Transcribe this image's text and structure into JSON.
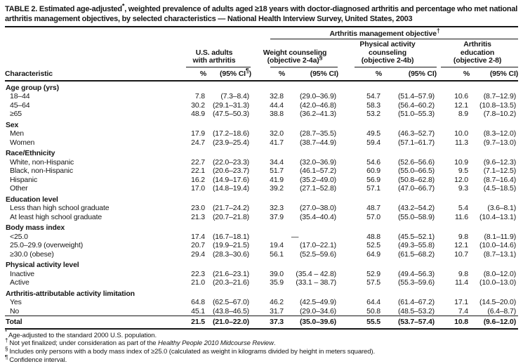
{
  "title": {
    "pre": "TABLE 2. Estimated age-adjusted",
    "sup": "*",
    "post": ", weighted prevalence of adults aged ≥18 years with doctor-diagnosed arthritis and percentage who met national arthritis management objectives, by selected characteristics — National Health Interview Survey, United States, 2003"
  },
  "table": {
    "characteristic_label": "Characteristic",
    "pct_label": "%",
    "ci_label": "(95% CI)",
    "ci_label_first": {
      "pre": "(95% CI",
      "sup": "¶",
      "post": ")"
    },
    "spanner": {
      "label": "Arthritis management objective",
      "sup": "†"
    },
    "groups": [
      {
        "lines": [
          "U.S. adults",
          "with arthritis"
        ],
        "sup": ""
      },
      {
        "lines": [
          "Weight counseling",
          "(objective 2-4a)"
        ],
        "sup": "§"
      },
      {
        "lines": [
          "Physical activity",
          "counseling",
          "(objective 2-4b)"
        ],
        "sup": ""
      },
      {
        "lines": [
          "Arthritis",
          "education",
          "(objective 2-8)"
        ],
        "sup": ""
      }
    ],
    "rows": [
      {
        "type": "category",
        "indent": 0,
        "label": "Age group (yrs)"
      },
      {
        "type": "data",
        "indent": 1,
        "label": "18–44",
        "cells": [
          "7.8",
          "(7.3–8.4)",
          "32.8",
          "(29.0–36.9)",
          "54.7",
          "(51.4–57.9)",
          "10.6",
          "(8.7–12.9)"
        ]
      },
      {
        "type": "data",
        "indent": 1,
        "label": "45–64",
        "cells": [
          "30.2",
          "(29.1–31.3)",
          "44.4",
          "(42.0–46.8)",
          "58.3",
          "(56.4–60.2)",
          "12.1",
          "(10.8–13.5)"
        ]
      },
      {
        "type": "data",
        "indent": 1,
        "label": "≥65",
        "cells": [
          "48.9",
          "(47.5–50.3)",
          "38.8",
          "(36.2–41.3)",
          "53.2",
          "(51.0–55.3)",
          "8.9",
          "(7.8–10.2)"
        ]
      },
      {
        "type": "category",
        "indent": 0,
        "label": "Sex"
      },
      {
        "type": "data",
        "indent": 1,
        "label": "Men",
        "cells": [
          "17.9",
          "(17.2–18.6)",
          "32.0",
          "(28.7–35.5)",
          "49.5",
          "(46.3–52.7)",
          "10.0",
          "(8.3–12.0)"
        ]
      },
      {
        "type": "data",
        "indent": 1,
        "label": "Women",
        "cells": [
          "24.7",
          "(23.9–25.4)",
          "41.7",
          "(38.7–44.9)",
          "59.4",
          "(57.1–61.7)",
          "11.3",
          "(9.7–13.0)"
        ]
      },
      {
        "type": "category",
        "indent": 0,
        "label": "Race/Ethnicity"
      },
      {
        "type": "data",
        "indent": 1,
        "label": "White, non-Hispanic",
        "cells": [
          "22.7",
          "(22.0–23.3)",
          "34.4",
          "(32.0–36.9)",
          "54.6",
          "(52.6–56.6)",
          "10.9",
          "(9.6–12.3)"
        ]
      },
      {
        "type": "data",
        "indent": 1,
        "label": "Black, non-Hispanic",
        "cells": [
          "22.1",
          "(20.6–23.7)",
          "51.7",
          "(46.1–57.2)",
          "60.9",
          "(55.0–66.5)",
          "9.5",
          "(7.1–12.5)"
        ]
      },
      {
        "type": "data",
        "indent": 1,
        "label": "Hispanic",
        "cells": [
          "16.2",
          "(14.9–17.6)",
          "41.9",
          "(35.2–49.0)",
          "56.9",
          "(50.8–62.8)",
          "12.0",
          "(8.7–16.4)"
        ]
      },
      {
        "type": "data",
        "indent": 1,
        "label": "Other",
        "cells": [
          "17.0",
          "(14.8–19.4)",
          "39.2",
          "(27.1–52.8)",
          "57.1",
          "(47.0–66.7)",
          "9.3",
          "(4.5–18.5)"
        ]
      },
      {
        "type": "category",
        "indent": 0,
        "label": "Education level"
      },
      {
        "type": "data",
        "indent": 1,
        "label": "Less than high school graduate",
        "cells": [
          "23.0",
          "(21.7–24.2)",
          "32.3",
          "(27.0–38.0)",
          "48.7",
          "(43.2–54.2)",
          "5.4",
          "(3.6–8.1)"
        ]
      },
      {
        "type": "data",
        "indent": 1,
        "label": "At least high school graduate",
        "cells": [
          "21.3",
          "(20.7–21.8)",
          "37.9",
          "(35.4–40.4)",
          "57.0",
          "(55.0–58.9)",
          "11.6",
          "(10.4–13.1)"
        ]
      },
      {
        "type": "category",
        "indent": 0,
        "label": "Body mass index"
      },
      {
        "type": "data",
        "indent": 1,
        "label": "<25.0",
        "cells": [
          "17.4",
          "(16.7–18.1)",
          "—",
          "",
          "48.8",
          "(45.5–52.1)",
          "9.8",
          "(8.1–11.9)"
        ]
      },
      {
        "type": "data",
        "indent": 2,
        "label": "25.0–29.9 (overweight)",
        "cells": [
          "20.7",
          "(19.9–21.5)",
          "19.4",
          "(17.0–22.1)",
          "52.5",
          "(49.3–55.8)",
          "12.1",
          "(10.0–14.6)"
        ]
      },
      {
        "type": "data",
        "indent": 1,
        "label": "≥30.0 (obese)",
        "cells": [
          "29.4",
          "(28.3–30.6)",
          "56.1",
          "(52.5–59.6)",
          "64.9",
          "(61.5–68.2)",
          "10.7",
          "(8.7–13.1)"
        ]
      },
      {
        "type": "category",
        "indent": 0,
        "label": "Physical activity level"
      },
      {
        "type": "data",
        "indent": 1,
        "label": "Inactive",
        "cells": [
          "22.3",
          "(21.6–23.1)",
          "39.0",
          "(35.4 – 42.8)",
          "52.9",
          "(49.4–56.3)",
          "9.8",
          "(8.0–12.0)"
        ]
      },
      {
        "type": "data",
        "indent": 1,
        "label": "Active",
        "cells": [
          "21.0",
          "(20.3–21.6)",
          "35.9",
          "(33.1 – 38.7)",
          "57.5",
          "(55.3–59.6)",
          "11.4",
          "(10.0–13.0)"
        ]
      },
      {
        "type": "category",
        "indent": 0,
        "label": "Arthritis-attributable activity limitation"
      },
      {
        "type": "data",
        "indent": 1,
        "label": "Yes",
        "cells": [
          "64.8",
          "(62.5–67.0)",
          "46.2",
          "(42.5–49.9)",
          "64.4",
          "(61.4–67.2)",
          "17.1",
          "(14.5–20.0)"
        ]
      },
      {
        "type": "data",
        "indent": 1,
        "label": "No",
        "cells": [
          "45.1",
          "(43.8–46.5)",
          "31.7",
          "(29.0–34.6)",
          "50.8",
          "(48.5–53.2)",
          "7.4",
          "(6.4–8.7)"
        ]
      },
      {
        "type": "total",
        "indent": 0,
        "label": "Total",
        "cells": [
          "21.5",
          "(21.0–22.0)",
          "37.3",
          "(35.0–39.6)",
          "55.5",
          "(53.7–57.4)",
          "10.8",
          "(9.6–12.0)"
        ]
      }
    ]
  },
  "footnotes": [
    {
      "sym": "*",
      "text": "Age-adjusted to the standard 2000 U.S. population."
    },
    {
      "sym": "†",
      "pre": "Not yet finalized; under consideration as part of the ",
      "italic": "Healthy People 2010 Midcourse Review",
      "post": "."
    },
    {
      "sym": "§",
      "text": "Includes only persons with a body mass index of ≥25.0 (calculated as weight in kilograms divided by height in meters squared)."
    },
    {
      "sym": "¶",
      "text": "Confidence interval."
    }
  ]
}
